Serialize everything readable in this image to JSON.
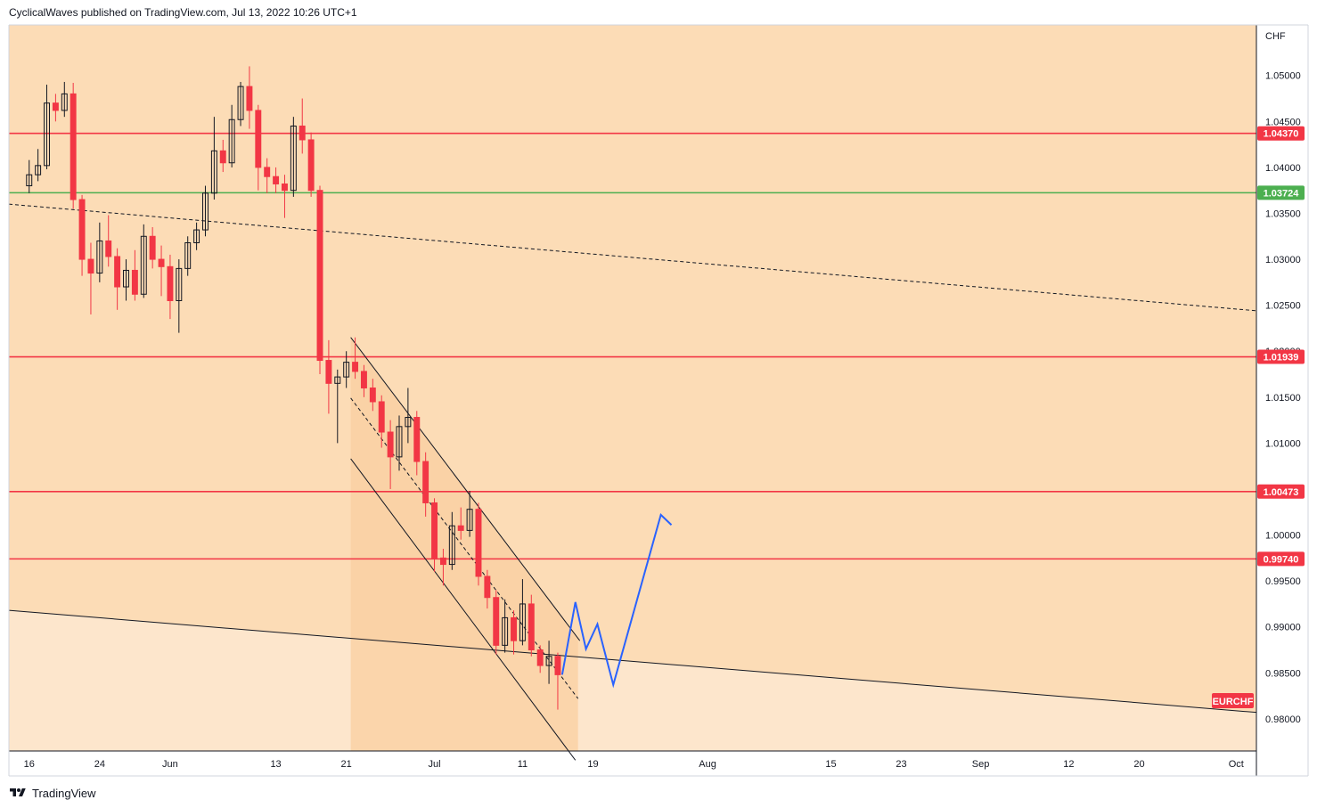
{
  "header": {
    "author": "CyclicalWaves",
    "published_text": "CyclicalWaves published on TradingView.com, Jul 13, 2022 10:26 UTC+1"
  },
  "footer": {
    "brand": "TradingView",
    "logo_icon": "tradingview-logo-icon"
  },
  "colors": {
    "bg_zone_upper": "#fcdcb6",
    "bg_zone_lower": "#fde6cc",
    "channel_fill": "#f9cfa0",
    "resistance": "#f23645",
    "support": "#4caf50",
    "projection": "#2962ff",
    "candle_up": "#131722",
    "candle_down": "#f23645"
  },
  "chart_data": {
    "type": "candlestick",
    "symbol": "EURCHF",
    "currency": "CHF",
    "y_range": [
      0.9765,
      1.0555
    ],
    "x_ticks": [
      {
        "label": "16",
        "day": 0
      },
      {
        "label": "24",
        "day": 8
      },
      {
        "label": "Jun",
        "day": 16
      },
      {
        "label": "13",
        "day": 28
      },
      {
        "label": "21",
        "day": 36
      },
      {
        "label": "Jul",
        "day": 46
      },
      {
        "label": "11",
        "day": 56
      },
      {
        "label": "19",
        "day": 64
      },
      {
        "label": "Aug",
        "day": 77
      },
      {
        "label": "15",
        "day": 91
      },
      {
        "label": "23",
        "day": 99
      },
      {
        "label": "Sep",
        "day": 108
      },
      {
        "label": "12",
        "day": 118
      },
      {
        "label": "20",
        "day": 126
      },
      {
        "label": "Oct",
        "day": 137
      }
    ],
    "x_day_range": [
      -2.3,
      139.3
    ],
    "y_ticks": [
      "1.05000",
      "1.04500",
      "1.04000",
      "1.03500",
      "1.03000",
      "1.02500",
      "1.02000",
      "1.01500",
      "1.01000",
      "1.00500",
      "1.00000",
      "0.99500",
      "0.99000",
      "0.98500",
      "0.98000"
    ],
    "horizontal_levels": [
      {
        "value": 1.0437,
        "label": "1.04370",
        "kind": "resistance"
      },
      {
        "value": 1.03724,
        "label": "1.03724",
        "kind": "support"
      },
      {
        "value": 1.01939,
        "label": "1.01939",
        "kind": "resistance"
      },
      {
        "value": 1.00473,
        "label": "1.00473",
        "kind": "resistance"
      },
      {
        "value": 0.9974,
        "label": "0.99740",
        "kind": "resistance"
      }
    ],
    "trendlines": [
      {
        "kind": "dashed",
        "from": {
          "day": -2.3,
          "price": 1.036
        },
        "to": {
          "day": 139.3,
          "price": 1.0244
        }
      },
      {
        "kind": "solid",
        "from": {
          "day": -2.3,
          "price": 0.9918
        },
        "to": {
          "day": 139.3,
          "price": 0.9807
        }
      }
    ],
    "channel": {
      "upper": [
        {
          "day": 36.5,
          "price": 1.0215
        },
        {
          "day": 62.5,
          "price": 0.9885
        }
      ],
      "lower": [
        {
          "day": 36.5,
          "price": 1.0083
        },
        {
          "day": 62,
          "price": 0.9755
        }
      ],
      "mid": [
        {
          "day": 36.5,
          "price": 1.0149
        },
        {
          "day": 62.3,
          "price": 0.9822
        }
      ],
      "highlight_days": [
        36.5,
        62.3
      ]
    },
    "projection_path": [
      {
        "day": 60.5,
        "price": 0.9848
      },
      {
        "day": 62,
        "price": 0.9927
      },
      {
        "day": 63.2,
        "price": 0.9876
      },
      {
        "day": 64.5,
        "price": 0.9903
      },
      {
        "day": 66.3,
        "price": 0.9837
      },
      {
        "day": 71.7,
        "price": 1.0022
      },
      {
        "day": 72.9,
        "price": 1.0011
      }
    ],
    "candles": [
      {
        "day": 0,
        "o": 1.038,
        "h": 1.0408,
        "l": 1.0372,
        "c": 1.0392
      },
      {
        "day": 1,
        "o": 1.0392,
        "h": 1.042,
        "l": 1.0385,
        "c": 1.0402
      },
      {
        "day": 2,
        "o": 1.0402,
        "h": 1.049,
        "l": 1.0398,
        "c": 1.047
      },
      {
        "day": 3,
        "o": 1.047,
        "h": 1.048,
        "l": 1.045,
        "c": 1.0462
      },
      {
        "day": 4,
        "o": 1.0462,
        "h": 1.0493,
        "l": 1.0455,
        "c": 1.048
      },
      {
        "day": 5,
        "o": 1.048,
        "h": 1.0492,
        "l": 1.0355,
        "c": 1.0365
      },
      {
        "day": 6,
        "o": 1.0365,
        "h": 1.037,
        "l": 1.0282,
        "c": 1.03
      },
      {
        "day": 7,
        "o": 1.03,
        "h": 1.0318,
        "l": 1.024,
        "c": 1.0285
      },
      {
        "day": 8,
        "o": 1.0285,
        "h": 1.034,
        "l": 1.0275,
        "c": 1.032
      },
      {
        "day": 9,
        "o": 1.032,
        "h": 1.0348,
        "l": 1.0292,
        "c": 1.0303
      },
      {
        "day": 10,
        "o": 1.0303,
        "h": 1.0312,
        "l": 1.0245,
        "c": 1.027
      },
      {
        "day": 11,
        "o": 1.027,
        "h": 1.03,
        "l": 1.0255,
        "c": 1.0288
      },
      {
        "day": 12,
        "o": 1.0288,
        "h": 1.031,
        "l": 1.0255,
        "c": 1.0262
      },
      {
        "day": 13,
        "o": 1.0262,
        "h": 1.0338,
        "l": 1.0258,
        "c": 1.0325
      },
      {
        "day": 14,
        "o": 1.0325,
        "h": 1.0335,
        "l": 1.029,
        "c": 1.03
      },
      {
        "day": 15,
        "o": 1.03,
        "h": 1.0315,
        "l": 1.026,
        "c": 1.0292
      },
      {
        "day": 16,
        "o": 1.0292,
        "h": 1.0305,
        "l": 1.0235,
        "c": 1.0255
      },
      {
        "day": 17,
        "o": 1.0255,
        "h": 1.03,
        "l": 1.022,
        "c": 1.029
      },
      {
        "day": 18,
        "o": 1.029,
        "h": 1.0325,
        "l": 1.0282,
        "c": 1.0318
      },
      {
        "day": 19,
        "o": 1.0318,
        "h": 1.034,
        "l": 1.031,
        "c": 1.0332
      },
      {
        "day": 20,
        "o": 1.0332,
        "h": 1.038,
        "l": 1.0325,
        "c": 1.0372
      },
      {
        "day": 21,
        "o": 1.0372,
        "h": 1.0455,
        "l": 1.0365,
        "c": 1.0418
      },
      {
        "day": 22,
        "o": 1.0418,
        "h": 1.043,
        "l": 1.0395,
        "c": 1.0405
      },
      {
        "day": 23,
        "o": 1.0405,
        "h": 1.0468,
        "l": 1.04,
        "c": 1.0452
      },
      {
        "day": 24,
        "o": 1.0452,
        "h": 1.0493,
        "l": 1.0445,
        "c": 1.0488
      },
      {
        "day": 25,
        "o": 1.0488,
        "h": 1.051,
        "l": 1.0442,
        "c": 1.0462
      },
      {
        "day": 26,
        "o": 1.0462,
        "h": 1.0468,
        "l": 1.0375,
        "c": 1.04
      },
      {
        "day": 27,
        "o": 1.04,
        "h": 1.041,
        "l": 1.0372,
        "c": 1.039
      },
      {
        "day": 28,
        "o": 1.039,
        "h": 1.04,
        "l": 1.0372,
        "c": 1.0382
      },
      {
        "day": 29,
        "o": 1.0382,
        "h": 1.0392,
        "l": 1.0345,
        "c": 1.0375
      },
      {
        "day": 30,
        "o": 1.0375,
        "h": 1.0455,
        "l": 1.0368,
        "c": 1.0445
      },
      {
        "day": 31,
        "o": 1.0445,
        "h": 1.0475,
        "l": 1.0415,
        "c": 1.043
      },
      {
        "day": 32,
        "o": 1.043,
        "h": 1.0438,
        "l": 1.0368,
        "c": 1.0375
      },
      {
        "day": 33,
        "o": 1.0375,
        "h": 1.038,
        "l": 1.0175,
        "c": 1.019
      },
      {
        "day": 34,
        "o": 1.019,
        "h": 1.0212,
        "l": 1.0132,
        "c": 1.0165
      },
      {
        "day": 35,
        "o": 1.0165,
        "h": 1.018,
        "l": 1.01,
        "c": 1.0172
      },
      {
        "day": 36,
        "o": 1.0172,
        "h": 1.02,
        "l": 1.016,
        "c": 1.0188
      },
      {
        "day": 37,
        "o": 1.0188,
        "h": 1.0215,
        "l": 1.017,
        "c": 1.0178
      },
      {
        "day": 38,
        "o": 1.0178,
        "h": 1.0185,
        "l": 1.015,
        "c": 1.016
      },
      {
        "day": 39,
        "o": 1.016,
        "h": 1.017,
        "l": 1.0135,
        "c": 1.0145
      },
      {
        "day": 40,
        "o": 1.0145,
        "h": 1.0152,
        "l": 1.0095,
        "c": 1.0112
      },
      {
        "day": 41,
        "o": 1.0112,
        "h": 1.0125,
        "l": 1.005,
        "c": 1.0085
      },
      {
        "day": 42,
        "o": 1.0085,
        "h": 1.013,
        "l": 1.007,
        "c": 1.0118
      },
      {
        "day": 43,
        "o": 1.0118,
        "h": 1.016,
        "l": 1.01,
        "c": 1.0128
      },
      {
        "day": 44,
        "o": 1.0128,
        "h": 1.0135,
        "l": 1.0065,
        "c": 1.008
      },
      {
        "day": 45,
        "o": 1.008,
        "h": 1.009,
        "l": 1.002,
        "c": 1.0035
      },
      {
        "day": 46,
        "o": 1.0035,
        "h": 1.004,
        "l": 0.996,
        "c": 0.9975
      },
      {
        "day": 47,
        "o": 0.9975,
        "h": 0.9985,
        "l": 0.9945,
        "c": 0.9968
      },
      {
        "day": 48,
        "o": 0.9968,
        "h": 1.0025,
        "l": 0.9962,
        "c": 1.001
      },
      {
        "day": 49,
        "o": 1.001,
        "h": 1.003,
        "l": 0.9995,
        "c": 1.0005
      },
      {
        "day": 50,
        "o": 1.0005,
        "h": 1.0048,
        "l": 0.9998,
        "c": 1.0028
      },
      {
        "day": 51,
        "o": 1.0028,
        "h": 1.0035,
        "l": 0.9945,
        "c": 0.9955
      },
      {
        "day": 52,
        "o": 0.9955,
        "h": 0.9962,
        "l": 0.992,
        "c": 0.9932
      },
      {
        "day": 53,
        "o": 0.9932,
        "h": 0.994,
        "l": 0.987,
        "c": 0.988
      },
      {
        "day": 54,
        "o": 0.988,
        "h": 0.993,
        "l": 0.9872,
        "c": 0.991
      },
      {
        "day": 55,
        "o": 0.991,
        "h": 0.9918,
        "l": 0.987,
        "c": 0.9885
      },
      {
        "day": 56,
        "o": 0.9885,
        "h": 0.9952,
        "l": 0.988,
        "c": 0.9925
      },
      {
        "day": 57,
        "o": 0.9925,
        "h": 0.9935,
        "l": 0.9868,
        "c": 0.9875
      },
      {
        "day": 58,
        "o": 0.9875,
        "h": 0.988,
        "l": 0.985,
        "c": 0.9858
      },
      {
        "day": 59,
        "o": 0.9858,
        "h": 0.9885,
        "l": 0.9838,
        "c": 0.9868
      },
      {
        "day": 60,
        "o": 0.9868,
        "h": 0.9872,
        "l": 0.981,
        "c": 0.9848
      }
    ]
  }
}
